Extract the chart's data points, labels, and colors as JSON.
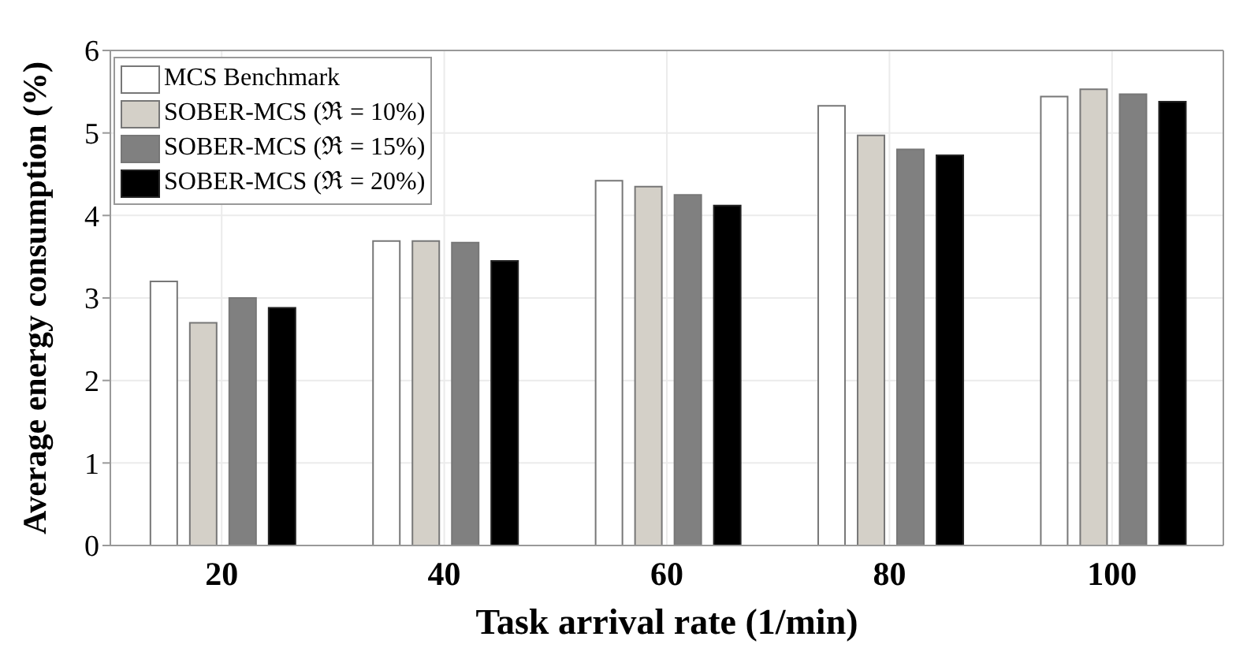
{
  "chart_data": {
    "type": "bar",
    "xlabel": "Task arrival rate (1/min)",
    "ylabel": "Average energy consumption (%)",
    "categories": [
      "20",
      "40",
      "60",
      "80",
      "100"
    ],
    "series": [
      {
        "name": "MCS Benchmark",
        "color": "#ffffff",
        "values": [
          3.2,
          3.69,
          4.42,
          5.33,
          5.44
        ]
      },
      {
        "name": "SOBER-MCS (ℜ = 10%)",
        "color": "#d4d0c8",
        "values": [
          2.7,
          3.69,
          4.35,
          4.97,
          5.53
        ]
      },
      {
        "name": "SOBER-MCS (ℜ = 15%)",
        "color": "#808080",
        "values": [
          3.0,
          3.67,
          4.25,
          4.8,
          5.47
        ]
      },
      {
        "name": "SOBER-MCS (ℜ = 20%)",
        "color": "#000000",
        "values": [
          2.88,
          3.45,
          4.12,
          4.73,
          5.38
        ]
      }
    ],
    "ylim": [
      0,
      6
    ],
    "yticks": [
      0,
      1,
      2,
      3,
      4,
      5,
      6
    ],
    "grid": true,
    "legend": "top left"
  }
}
